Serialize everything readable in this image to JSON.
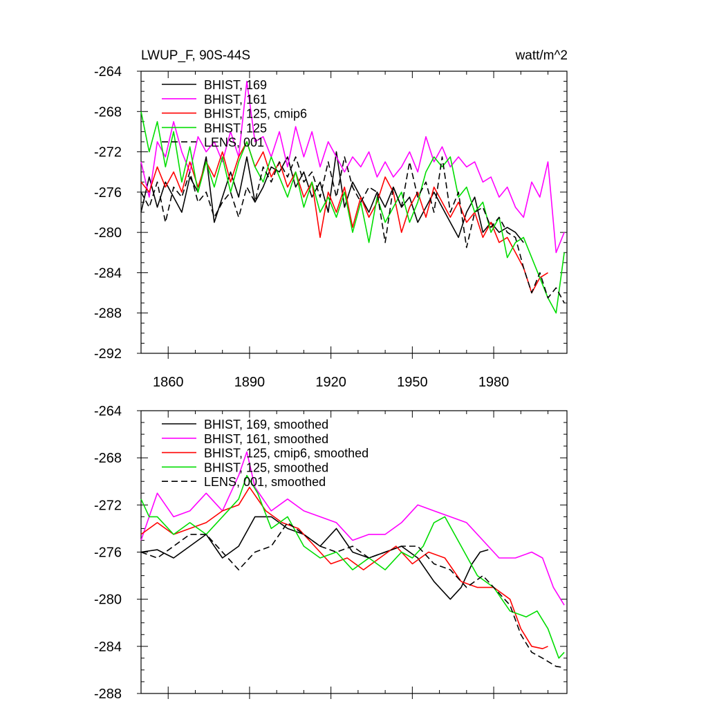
{
  "figure": {
    "title_left": "LWUP_F, 90S-44S",
    "title_right": "watt/m^2"
  },
  "chart_data": [
    {
      "type": "line",
      "xlim": [
        1850,
        2007
      ],
      "ylim": [
        -292,
        -264
      ],
      "yticks": [
        -264,
        -268,
        -272,
        -276,
        -280,
        -284,
        -288,
        -292
      ],
      "xticks": [
        1860,
        1890,
        1920,
        1950,
        1980
      ],
      "xtick_labels_shown": true,
      "grid": false,
      "legend_placement": "top-left",
      "series": [
        {
          "name": "BHIST, 169",
          "color": "#000000",
          "dash": "solid",
          "x": [
            1850,
            1853,
            1856,
            1859,
            1862,
            1865,
            1868,
            1871,
            1874,
            1877,
            1880,
            1883,
            1886,
            1889,
            1892,
            1895,
            1898,
            1901,
            1904,
            1907,
            1910,
            1913,
            1916,
            1919,
            1922,
            1925,
            1928,
            1931,
            1934,
            1937,
            1940,
            1943,
            1946,
            1949,
            1952,
            1955,
            1958,
            1961,
            1964,
            1967,
            1970,
            1973,
            1976,
            1979,
            1982,
            1985,
            1988,
            1991
          ],
          "y": [
            -278.0,
            -274.5,
            -277.5,
            -275.0,
            -276.5,
            -278.0,
            -274.5,
            -276.0,
            -272.5,
            -279.0,
            -276.5,
            -274.0,
            -276.5,
            -272.5,
            -277.0,
            -275.5,
            -273.5,
            -274.0,
            -272.5,
            -275.5,
            -274.0,
            -276.5,
            -275.0,
            -278.0,
            -272.0,
            -277.5,
            -275.0,
            -276.5,
            -278.0,
            -276.0,
            -277.5,
            -275.5,
            -277.5,
            -276.5,
            -279.0,
            -277.5,
            -276.0,
            -277.5,
            -279.0,
            -280.5,
            -278.0,
            -276.5,
            -280.0,
            -279.0,
            -280.0,
            -279.5,
            -280.0,
            -281.0
          ]
        },
        {
          "name": "BHIST, 161",
          "color": "#ff00ff",
          "dash": "solid",
          "x": [
            1850,
            1853,
            1856,
            1859,
            1862,
            1865,
            1868,
            1871,
            1874,
            1877,
            1880,
            1883,
            1886,
            1889,
            1892,
            1895,
            1898,
            1901,
            1904,
            1907,
            1910,
            1913,
            1916,
            1919,
            1922,
            1925,
            1928,
            1931,
            1934,
            1937,
            1940,
            1943,
            1946,
            1949,
            1952,
            1955,
            1958,
            1961,
            1964,
            1967,
            1970,
            1973,
            1976,
            1979,
            1982,
            1985,
            1988,
            1991,
            1994,
            1997,
            2000,
            2003,
            2006
          ],
          "y": [
            -273.0,
            -276.5,
            -271.0,
            -272.5,
            -269.0,
            -272.0,
            -274.0,
            -270.5,
            -272.0,
            -271.0,
            -273.0,
            -270.0,
            -272.5,
            -265.0,
            -271.0,
            -270.5,
            -272.5,
            -270.0,
            -273.5,
            -269.5,
            -272.5,
            -270.0,
            -273.5,
            -271.0,
            -272.5,
            -274.0,
            -272.5,
            -273.5,
            -272.0,
            -274.5,
            -273.0,
            -274.5,
            -273.5,
            -272.0,
            -274.0,
            -270.5,
            -273.0,
            -271.5,
            -273.5,
            -272.5,
            -273.5,
            -273.0,
            -275.0,
            -274.5,
            -276.5,
            -275.5,
            -277.5,
            -278.5,
            -275.0,
            -276.5,
            -273.0,
            -282.0,
            -280.0
          ]
        },
        {
          "name": "BHIST, 125, cmip6",
          "color": "#ff0000",
          "dash": "solid",
          "x": [
            1850,
            1853,
            1856,
            1859,
            1862,
            1865,
            1868,
            1871,
            1874,
            1877,
            1880,
            1883,
            1886,
            1889,
            1892,
            1895,
            1898,
            1901,
            1904,
            1907,
            1910,
            1913,
            1916,
            1919,
            1922,
            1925,
            1928,
            1931,
            1934,
            1937,
            1940,
            1943,
            1946,
            1949,
            1952,
            1955,
            1958,
            1961,
            1964,
            1967,
            1970,
            1973,
            1976,
            1979,
            1982,
            1985,
            1988,
            1991,
            1994,
            1997,
            2000
          ],
          "y": [
            -275.0,
            -276.0,
            -273.5,
            -275.5,
            -274.0,
            -276.0,
            -273.0,
            -275.5,
            -273.0,
            -274.5,
            -272.0,
            -275.0,
            -272.5,
            -271.0,
            -273.5,
            -272.0,
            -274.5,
            -273.0,
            -275.5,
            -274.0,
            -276.5,
            -275.0,
            -280.5,
            -276.0,
            -278.0,
            -275.5,
            -279.5,
            -276.5,
            -278.5,
            -277.0,
            -274.5,
            -276.0,
            -280.0,
            -277.5,
            -276.0,
            -278.5,
            -275.5,
            -277.0,
            -278.5,
            -277.0,
            -279.0,
            -278.0,
            -280.5,
            -279.0,
            -281.0,
            -280.5,
            -282.0,
            -283.5,
            -286.0,
            -284.5,
            -284.0
          ]
        },
        {
          "name": "BHIST, 125",
          "color": "#00dd00",
          "dash": "solid",
          "x": [
            1850,
            1853,
            1856,
            1859,
            1862,
            1865,
            1868,
            1871,
            1874,
            1877,
            1880,
            1883,
            1886,
            1889,
            1892,
            1895,
            1898,
            1901,
            1904,
            1907,
            1910,
            1913,
            1916,
            1919,
            1922,
            1925,
            1928,
            1931,
            1934,
            1937,
            1940,
            1943,
            1946,
            1949,
            1952,
            1955,
            1958,
            1961,
            1964,
            1967,
            1970,
            1973,
            1976,
            1979,
            1982,
            1985,
            1988,
            1991,
            1994,
            1997,
            2000,
            2003,
            2006
          ],
          "y": [
            -268.0,
            -272.0,
            -269.0,
            -273.5,
            -270.0,
            -275.0,
            -271.5,
            -276.0,
            -273.0,
            -275.5,
            -272.5,
            -276.0,
            -273.0,
            -271.0,
            -273.5,
            -275.0,
            -272.5,
            -274.5,
            -276.5,
            -274.0,
            -277.5,
            -275.0,
            -278.0,
            -276.5,
            -278.5,
            -276.0,
            -280.0,
            -277.0,
            -281.0,
            -276.5,
            -279.0,
            -277.5,
            -276.0,
            -279.0,
            -277.0,
            -274.0,
            -272.5,
            -273.5,
            -272.5,
            -276.5,
            -275.5,
            -278.0,
            -277.0,
            -280.0,
            -278.5,
            -282.5,
            -281.0,
            -280.5,
            -282.5,
            -284.5,
            -286.5,
            -288.0,
            -282.0
          ]
        },
        {
          "name": "LENS, 001",
          "color": "#000000",
          "dash": "dashed",
          "x": [
            1850,
            1853,
            1856,
            1859,
            1862,
            1865,
            1868,
            1871,
            1874,
            1877,
            1880,
            1883,
            1886,
            1889,
            1892,
            1895,
            1898,
            1901,
            1904,
            1907,
            1910,
            1913,
            1916,
            1919,
            1922,
            1925,
            1928,
            1931,
            1934,
            1937,
            1940,
            1943,
            1946,
            1949,
            1952,
            1955,
            1958,
            1961,
            1964,
            1967,
            1970,
            1973,
            1976,
            1979,
            1982,
            1985,
            1988,
            1991,
            1994,
            1997,
            2000,
            2003,
            2006
          ],
          "y": [
            -276.0,
            -277.5,
            -275.0,
            -279.0,
            -275.5,
            -276.5,
            -274.0,
            -277.0,
            -276.0,
            -278.5,
            -277.0,
            -276.0,
            -278.5,
            -275.5,
            -277.0,
            -273.5,
            -275.0,
            -273.0,
            -274.5,
            -272.5,
            -275.0,
            -274.0,
            -276.5,
            -273.0,
            -276.5,
            -272.5,
            -275.5,
            -277.0,
            -275.5,
            -276.0,
            -281.0,
            -275.5,
            -277.5,
            -273.0,
            -276.5,
            -275.0,
            -278.0,
            -272.5,
            -278.0,
            -276.0,
            -281.5,
            -278.0,
            -277.5,
            -279.5,
            -278.5,
            -280.0,
            -280.5,
            -283.5,
            -286.0,
            -284.0,
            -286.5,
            -285.5,
            -287.0
          ]
        }
      ]
    },
    {
      "type": "line",
      "xlim": [
        1850,
        2007
      ],
      "ylim": [
        -288,
        -264
      ],
      "yticks": [
        -264,
        -268,
        -272,
        -276,
        -280,
        -284,
        -288
      ],
      "xticks": [
        1860,
        1890,
        1920,
        1950,
        1980
      ],
      "xtick_labels_shown": false,
      "grid": false,
      "legend_placement": "top-left",
      "series": [
        {
          "name": "BHIST, 169, smoothed",
          "color": "#000000",
          "dash": "solid",
          "x": [
            1850,
            1856,
            1862,
            1868,
            1874,
            1880,
            1886,
            1892,
            1898,
            1904,
            1910,
            1916,
            1922,
            1928,
            1934,
            1940,
            1946,
            1952,
            1958,
            1964,
            1968,
            1972,
            1975,
            1978
          ],
          "y": [
            -276.0,
            -275.8,
            -276.5,
            -275.5,
            -274.5,
            -276.5,
            -275.5,
            -273.0,
            -273.0,
            -274.0,
            -274.5,
            -275.5,
            -274.0,
            -276.0,
            -276.5,
            -276.0,
            -275.5,
            -276.5,
            -278.5,
            -280.0,
            -279.0,
            -277.0,
            -276.0,
            -275.8
          ]
        },
        {
          "name": "BHIST, 161, smoothed",
          "color": "#ff00ff",
          "dash": "solid",
          "x": [
            1850,
            1856,
            1862,
            1868,
            1874,
            1880,
            1886,
            1889,
            1892,
            1898,
            1904,
            1910,
            1916,
            1922,
            1928,
            1934,
            1940,
            1946,
            1952,
            1958,
            1964,
            1970,
            1976,
            1982,
            1988,
            1994,
            1998,
            2002,
            2006
          ],
          "y": [
            -275.0,
            -271.0,
            -273.0,
            -272.5,
            -271.0,
            -272.5,
            -269.5,
            -267.5,
            -270.5,
            -272.5,
            -271.5,
            -272.5,
            -273.0,
            -273.5,
            -275.0,
            -274.5,
            -274.5,
            -273.5,
            -272.0,
            -272.5,
            -273.0,
            -273.5,
            -275.0,
            -276.5,
            -276.5,
            -276.0,
            -276.5,
            -279.0,
            -280.5
          ]
        },
        {
          "name": "BHIST, 125, cmip6, smoothed",
          "color": "#ff0000",
          "dash": "solid",
          "x": [
            1850,
            1856,
            1862,
            1868,
            1874,
            1880,
            1886,
            1890,
            1896,
            1902,
            1908,
            1914,
            1920,
            1926,
            1932,
            1938,
            1944,
            1950,
            1956,
            1962,
            1968,
            1974,
            1980,
            1986,
            1990,
            1994,
            1998,
            2000
          ],
          "y": [
            -274.5,
            -273.5,
            -274.5,
            -274.0,
            -273.5,
            -272.5,
            -272.0,
            -270.5,
            -272.5,
            -273.5,
            -274.0,
            -275.5,
            -277.0,
            -276.5,
            -277.5,
            -276.5,
            -275.5,
            -277.0,
            -276.0,
            -276.5,
            -278.5,
            -279.0,
            -279.0,
            -280.0,
            -282.5,
            -284.0,
            -284.2,
            -284.0
          ]
        },
        {
          "name": "BHIST, 125, smoothed",
          "color": "#00dd00",
          "dash": "solid",
          "x": [
            1850,
            1853,
            1856,
            1862,
            1868,
            1874,
            1880,
            1886,
            1889,
            1893,
            1898,
            1904,
            1910,
            1916,
            1922,
            1928,
            1934,
            1940,
            1946,
            1950,
            1954,
            1958,
            1962,
            1968,
            1974,
            1980,
            1986,
            1992,
            1996,
            2000,
            2004,
            2006
          ],
          "y": [
            -271.5,
            -273.0,
            -273.0,
            -274.5,
            -273.5,
            -274.5,
            -273.0,
            -271.5,
            -269.5,
            -271.0,
            -274.0,
            -273.0,
            -275.5,
            -276.5,
            -276.0,
            -277.5,
            -276.5,
            -277.5,
            -276.0,
            -276.5,
            -275.5,
            -273.5,
            -273.0,
            -275.5,
            -278.0,
            -279.0,
            -281.0,
            -281.5,
            -281.0,
            -282.5,
            -285.0,
            -284.5
          ]
        },
        {
          "name": "LENS, 001, smoothed",
          "color": "#000000",
          "dash": "dashed",
          "x": [
            1850,
            1856,
            1862,
            1868,
            1874,
            1880,
            1886,
            1892,
            1898,
            1904,
            1910,
            1916,
            1922,
            1928,
            1934,
            1940,
            1946,
            1952,
            1958,
            1964,
            1970,
            1976,
            1982,
            1986,
            1990,
            1994,
            1998,
            2003,
            2006
          ],
          "y": [
            -276.0,
            -276.5,
            -275.5,
            -274.5,
            -274.5,
            -276.0,
            -277.5,
            -276.0,
            -275.5,
            -273.5,
            -274.5,
            -275.5,
            -276.0,
            -275.5,
            -276.5,
            -276.0,
            -275.5,
            -275.5,
            -277.0,
            -277.5,
            -279.0,
            -278.0,
            -279.5,
            -280.5,
            -283.0,
            -284.5,
            -285.0,
            -285.7,
            -285.8
          ]
        }
      ]
    }
  ]
}
